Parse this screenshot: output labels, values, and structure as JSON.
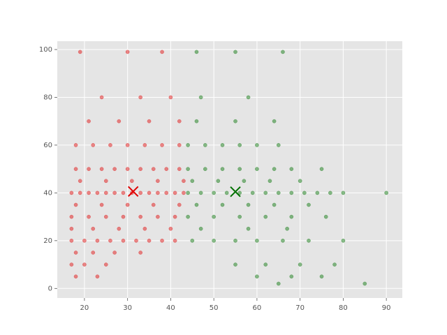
{
  "chart_data": {
    "type": "scatter",
    "xlim": [
      13.7,
      93.7
    ],
    "ylim": [
      -4,
      103.5
    ],
    "xticks": [
      20,
      30,
      40,
      50,
      60,
      70,
      80,
      90
    ],
    "yticks": [
      0,
      20,
      40,
      60,
      80,
      100
    ],
    "grid": true,
    "background": "#e5e5e5",
    "series": [
      {
        "color": "#e00000",
        "opacity": 0.45,
        "x": [
          17,
          19,
          21,
          23,
          25,
          27,
          29,
          31,
          33,
          35,
          37,
          39,
          41,
          43,
          18,
          21,
          24,
          27,
          30,
          33,
          36,
          39,
          42,
          18,
          22,
          26,
          30,
          34,
          38,
          42,
          17,
          20,
          23,
          26,
          29,
          32,
          35,
          38,
          41,
          17,
          21,
          25,
          29,
          33,
          37,
          41,
          19,
          25,
          31,
          37,
          43,
          18,
          24,
          30,
          36,
          42,
          17,
          22,
          28,
          34,
          40,
          18,
          22,
          27,
          33,
          17,
          20,
          25,
          18,
          23,
          21,
          28,
          35,
          42,
          24,
          33,
          40,
          19,
          30,
          38
        ],
        "values": [
          40,
          40,
          40,
          40,
          40,
          40,
          40,
          40,
          40,
          40,
          40,
          40,
          40,
          40,
          50,
          50,
          50,
          50,
          50,
          50,
          50,
          50,
          50,
          60,
          60,
          60,
          60,
          60,
          60,
          60,
          20,
          20,
          20,
          20,
          20,
          20,
          20,
          20,
          20,
          30,
          30,
          30,
          30,
          30,
          30,
          30,
          45,
          45,
          45,
          45,
          45,
          35,
          35,
          35,
          35,
          35,
          25,
          25,
          25,
          25,
          25,
          15,
          15,
          15,
          15,
          10,
          10,
          10,
          5,
          5,
          70,
          70,
          70,
          70,
          80,
          80,
          80,
          99,
          99,
          99
        ]
      },
      {
        "color": "#007000",
        "opacity": 0.45,
        "x": [
          44,
          47,
          50,
          53,
          56,
          59,
          62,
          65,
          68,
          71,
          74,
          77,
          80,
          90,
          44,
          48,
          52,
          56,
          60,
          64,
          68,
          75,
          44,
          48,
          52,
          56,
          60,
          65,
          45,
          51,
          57,
          63,
          70,
          46,
          52,
          58,
          64,
          72,
          44,
          50,
          56,
          62,
          68,
          76,
          45,
          50,
          55,
          60,
          66,
          72,
          80,
          47,
          58,
          67,
          55,
          62,
          70,
          78,
          60,
          68,
          75,
          65,
          85,
          46,
          55,
          64,
          47,
          58,
          46,
          55,
          66
        ],
        "values": [
          40,
          40,
          40,
          40,
          40,
          40,
          40,
          40,
          40,
          40,
          40,
          40,
          40,
          40,
          50,
          50,
          50,
          50,
          50,
          50,
          50,
          50,
          60,
          60,
          60,
          60,
          60,
          60,
          45,
          45,
          45,
          45,
          45,
          35,
          35,
          35,
          35,
          35,
          30,
          30,
          30,
          30,
          30,
          30,
          20,
          20,
          20,
          20,
          20,
          20,
          20,
          25,
          25,
          25,
          10,
          10,
          10,
          10,
          5,
          5,
          5,
          2,
          2,
          70,
          70,
          70,
          80,
          80,
          99,
          99,
          99
        ]
      }
    ],
    "centers": {
      "x": [
        31.3,
        55.0
      ],
      "values": [
        40.6,
        40.5
      ],
      "colors": [
        "#e00000",
        "#007000"
      ]
    }
  }
}
